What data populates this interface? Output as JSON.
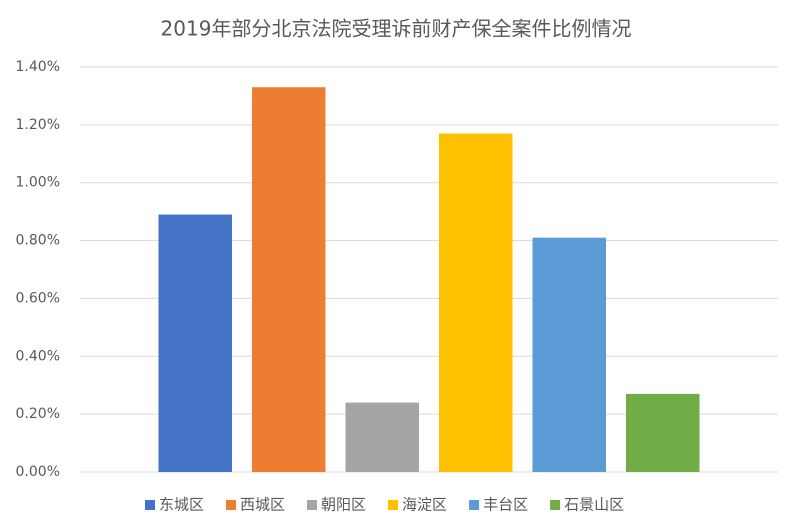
{
  "chart_data": {
    "type": "bar",
    "title": "2019年部分北京法院受理诉前财产保全案件比例情况",
    "categories": [
      null
    ],
    "series": [
      {
        "name": "东城区",
        "color": "#4472c4",
        "values": [
          0.89
        ]
      },
      {
        "name": "西城区",
        "color": "#ed7d31",
        "values": [
          1.33
        ]
      },
      {
        "name": "朝阳区",
        "color": "#a5a5a5",
        "values": [
          0.24
        ]
      },
      {
        "name": "海淀区",
        "color": "#ffc000",
        "values": [
          1.17
        ]
      },
      {
        "name": "丰台区",
        "color": "#5b9bd5",
        "values": [
          0.81
        ]
      },
      {
        "name": "石景山区",
        "color": "#70ad47",
        "values": [
          0.27
        ]
      }
    ],
    "ylim": [
      0,
      1.4
    ],
    "yticks": [
      {
        "value": 0,
        "label": "0.00%"
      },
      {
        "value": 0.2,
        "label": "0.20%"
      },
      {
        "value": 0.4,
        "label": "0.40%"
      },
      {
        "value": 0.6,
        "label": "0.60%"
      },
      {
        "value": 0.8,
        "label": "0.80%"
      },
      {
        "value": 1.0,
        "label": "1.00%"
      },
      {
        "value": 1.2,
        "label": "1.20%"
      },
      {
        "value": 1.4,
        "label": "1.40%"
      }
    ],
    "grid": true,
    "legend": "bottom"
  }
}
